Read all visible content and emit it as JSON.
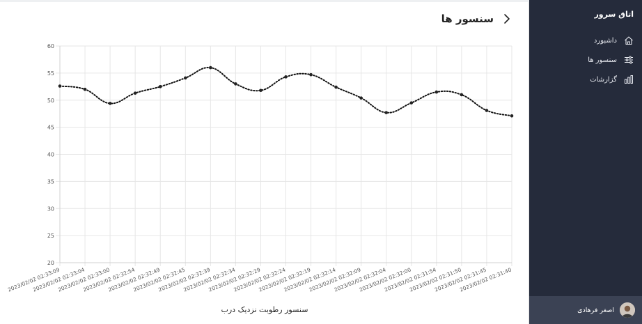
{
  "page": {
    "title": "سنسور ها"
  },
  "sidebar": {
    "brand": "اتاق سرور",
    "items": [
      {
        "label": "داشبورد",
        "icon": "home-icon"
      },
      {
        "label": "سنسور ها",
        "icon": "sliders-icon"
      },
      {
        "label": "گزارشات",
        "icon": "bar-chart-icon"
      }
    ],
    "user": {
      "name": "اصغر فرهادی",
      "icon": "avatar"
    }
  },
  "colors": {
    "sidebar_bg": "#252b3b",
    "user_bar_bg": "#3b4254",
    "line": "#111111",
    "grid": "#e6e6e6"
  },
  "chart_data": {
    "type": "line",
    "title": "",
    "xlabel": "سنسور رطوبت نزدیک درب",
    "ylabel": "",
    "ylim": [
      20,
      60
    ],
    "yticks": [
      20,
      25,
      30,
      35,
      40,
      45,
      50,
      55,
      60
    ],
    "grid": true,
    "line_style": "dotted",
    "categories": [
      "2023/02/02 02:33:09",
      "2023/02/02 02:33:04",
      "2023/02/02 02:33:00",
      "2023/02/02 02:32:54",
      "2023/02/02 02:32:49",
      "2023/02/02 02:32:45",
      "2023/02/02 02:32:39",
      "2023/02/02 02:32:34",
      "2023/02/02 02:32:29",
      "2023/02/02 02:32:24",
      "2023/02/02 02:32:19",
      "2023/02/02 02:32:14",
      "2023/02/02 02:32:09",
      "2023/02/02 02:32:04",
      "2023/02/02 02:32:00",
      "2023/02/02 02:31:54",
      "2023/02/02 02:31:50",
      "2023/02/02 02:31:45",
      "2023/02/02 02:31:40"
    ],
    "values": [
      52.6,
      52.0,
      49.4,
      51.3,
      52.5,
      54.1,
      56.0,
      53.0,
      51.8,
      54.3,
      54.7,
      52.4,
      50.4,
      47.7,
      49.5,
      51.5,
      51.0,
      48.1,
      47.1
    ]
  }
}
